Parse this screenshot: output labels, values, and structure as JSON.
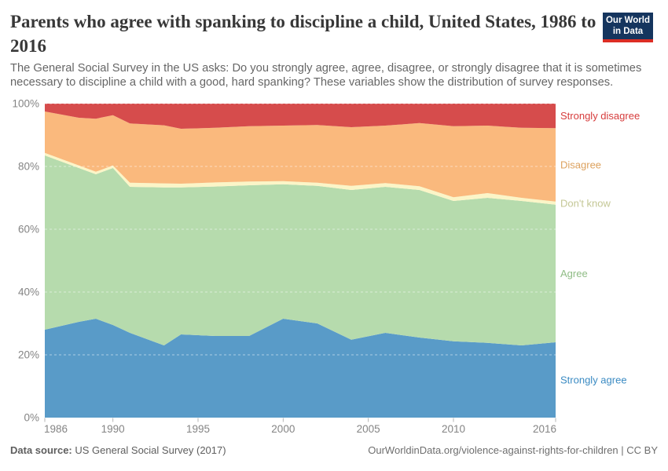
{
  "header": {
    "title": "Parents who agree with spanking to discipline a child, United States, 1986 to 2016",
    "subtitle": "The General Social Survey in the US asks: Do you strongly agree, agree, disagree, or strongly disagree that it is sometimes necessary to discipline a child with a good, hard spanking? These variables show the distribution of survey responses."
  },
  "logo": {
    "line1": "Our World",
    "line2": "in Data",
    "bg_color": "#15355e",
    "bar_color": "#dc2d24"
  },
  "chart_data": {
    "type": "area",
    "stacked": true,
    "unit": "%",
    "title": "Parents who agree with spanking to discipline a child, United States, 1986 to 2016",
    "x": [
      1986,
      1988,
      1989,
      1990,
      1991,
      1993,
      1994,
      1996,
      1998,
      2000,
      2002,
      2004,
      2006,
      2008,
      2010,
      2012,
      2014,
      2016
    ],
    "series": [
      {
        "name": "Strongly agree",
        "color": "#599bc8",
        "label_color": "#3b8bc3",
        "values": [
          28,
          30.5,
          31.5,
          29.5,
          27,
          23,
          26.5,
          26,
          26,
          31.5,
          30,
          24.8,
          27,
          25.5,
          24.3,
          23.8,
          23,
          24
        ]
      },
      {
        "name": "Agree",
        "color": "#b6dbad",
        "label_color": "#8fbc85",
        "values": [
          55.5,
          49,
          46,
          50,
          46.5,
          50.3,
          46.8,
          47.6,
          48,
          42.8,
          43.8,
          47.7,
          46.5,
          47,
          44.7,
          46.2,
          46,
          43.8
        ]
      },
      {
        "name": "Don't know",
        "color": "#fbf5c7",
        "label_color": "#c4c795",
        "values": [
          0.8,
          0.8,
          0.8,
          0.8,
          1.3,
          1.3,
          1.2,
          1.3,
          1.2,
          1,
          1,
          1.3,
          1.2,
          1.2,
          1.2,
          1.5,
          1,
          1
        ]
      },
      {
        "name": "Disagree",
        "color": "#fab97d",
        "label_color": "#dda25f",
        "values": [
          13.2,
          15.2,
          16.9,
          16,
          18.9,
          18.5,
          17.5,
          17.4,
          17.6,
          17.7,
          18.4,
          18.7,
          18.3,
          20.1,
          22.6,
          21.5,
          22.3,
          23.4
        ]
      },
      {
        "name": "Strongly disagree",
        "color": "#d64c4c",
        "label_color": "#d63c3c",
        "values": [
          2.5,
          4.5,
          4.8,
          3.7,
          6.3,
          6.9,
          8,
          7.7,
          7.2,
          7,
          6.8,
          7.5,
          7,
          6.2,
          7.2,
          7,
          7.7,
          7.8
        ]
      }
    ],
    "y_axis": {
      "range": [
        0,
        100
      ],
      "ticks": [
        0,
        20,
        40,
        60,
        80,
        100
      ],
      "tick_labels": [
        "0%",
        "20%",
        "40%",
        "60%",
        "80%",
        "100%"
      ],
      "gridlines": "dashed"
    },
    "x_axis": {
      "range": [
        1986,
        2016
      ],
      "ticks": [
        1986,
        1990,
        1995,
        2000,
        2005,
        2010,
        2016
      ],
      "tick_labels": [
        "1986",
        "1990",
        "1995",
        "2000",
        "2005",
        "2010",
        "2016"
      ]
    },
    "legend_position": "right"
  },
  "footer": {
    "source_label": "Data source:",
    "source_value": " US General Social Survey (2017)",
    "link": "OurWorldinData.org/violence-against-rights-for-children | CC BY"
  }
}
